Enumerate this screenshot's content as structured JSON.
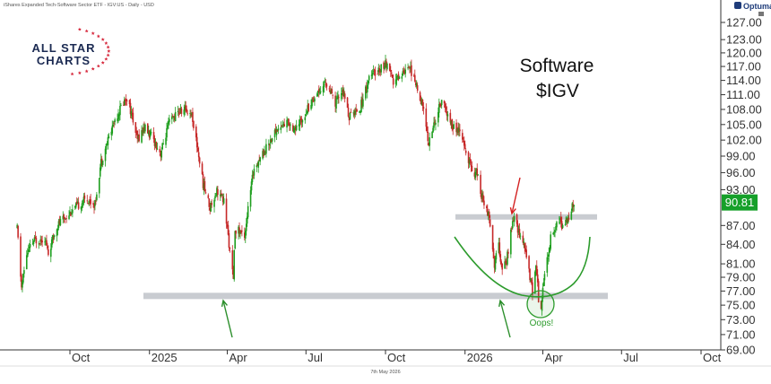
{
  "header": {
    "title": "iShares Expanded Tech-Software Sector ETF - IGV:US - Daily - USD"
  },
  "brand": {
    "line1": "ALL STAR",
    "line2": "CHARTS",
    "platform": "Optuma"
  },
  "chart_data": {
    "type": "candlestick",
    "title": "Software",
    "subtitle": "$IGV",
    "last_price": "90.81",
    "footer_date": "7th May 2026",
    "y_ticks": [
      "127.00",
      "123.00",
      "120.00",
      "117.00",
      "114.00",
      "111.00",
      "108.00",
      "105.00",
      "102.00",
      "99.00",
      "96.00",
      "93.00",
      "87.00",
      "84.00",
      "81.00",
      "79.00",
      "77.00",
      "75.00",
      "73.00",
      "71.00",
      "69.00"
    ],
    "x_ticks": [
      "Oct",
      "2025",
      "Apr",
      "Jul",
      "Oct",
      "2026",
      "Apr",
      "Jul",
      "Oct"
    ],
    "ylim": [
      68,
      129
    ],
    "price_path": [
      [
        "2024-08-01",
        86.5
      ],
      [
        "2024-08-06",
        77.5
      ],
      [
        "2024-08-12",
        82.5
      ],
      [
        "2024-08-20",
        84.5
      ],
      [
        "2024-09-02",
        85.0
      ],
      [
        "2024-09-06",
        82.5
      ],
      [
        "2024-09-16",
        87.0
      ],
      [
        "2024-09-30",
        89.0
      ],
      [
        "2024-10-08",
        90.0
      ],
      [
        "2024-10-20",
        91.5
      ],
      [
        "2024-10-30",
        90.5
      ],
      [
        "2024-11-06",
        98.0
      ],
      [
        "2024-11-14",
        102.0
      ],
      [
        "2024-11-22",
        106.0
      ],
      [
        "2024-12-02",
        109.5
      ],
      [
        "2024-12-06",
        110.5
      ],
      [
        "2024-12-12",
        106.5
      ],
      [
        "2024-12-18",
        102.0
      ],
      [
        "2024-12-26",
        104.5
      ],
      [
        "2025-01-06",
        102.0
      ],
      [
        "2025-01-14",
        99.5
      ],
      [
        "2025-01-24",
        105.5
      ],
      [
        "2025-02-04",
        107.5
      ],
      [
        "2025-02-12",
        108.0
      ],
      [
        "2025-02-19",
        107.0
      ],
      [
        "2025-02-26",
        100.0
      ],
      [
        "2025-03-04",
        94.0
      ],
      [
        "2025-03-12",
        90.0
      ],
      [
        "2025-03-20",
        93.0
      ],
      [
        "2025-03-28",
        91.0
      ],
      [
        "2025-04-04",
        83.0
      ],
      [
        "2025-04-08",
        78.5
      ],
      [
        "2025-04-10",
        86.5
      ],
      [
        "2025-04-21",
        85.5
      ],
      [
        "2025-05-02",
        97.0
      ],
      [
        "2025-05-14",
        100.0
      ],
      [
        "2025-05-28",
        104.0
      ],
      [
        "2025-06-10",
        105.5
      ],
      [
        "2025-06-20",
        104.0
      ],
      [
        "2025-07-02",
        108.0
      ],
      [
        "2025-07-14",
        111.5
      ],
      [
        "2025-07-24",
        113.5
      ],
      [
        "2025-08-04",
        109.0
      ],
      [
        "2025-08-12",
        112.0
      ],
      [
        "2025-08-20",
        106.5
      ],
      [
        "2025-09-02",
        108.5
      ],
      [
        "2025-09-12",
        114.5
      ],
      [
        "2025-09-24",
        116.5
      ],
      [
        "2025-10-02",
        117.5
      ],
      [
        "2025-10-10",
        113.5
      ],
      [
        "2025-10-20",
        115.5
      ],
      [
        "2025-10-28",
        117.5
      ],
      [
        "2025-11-05",
        113.0
      ],
      [
        "2025-11-12",
        109.5
      ],
      [
        "2025-11-20",
        101.5
      ],
      [
        "2025-11-28",
        106.0
      ],
      [
        "2025-12-05",
        110.0
      ],
      [
        "2025-12-12",
        106.5
      ],
      [
        "2025-12-18",
        104.5
      ],
      [
        "2025-12-26",
        103.5
      ],
      [
        "2026-01-05",
        98.0
      ],
      [
        "2026-01-12",
        96.0
      ],
      [
        "2026-01-16",
        95.5
      ],
      [
        "2026-01-20",
        92.0
      ],
      [
        "2026-01-26",
        90.0
      ],
      [
        "2026-01-30",
        87.5
      ],
      [
        "2026-02-04",
        81.0
      ],
      [
        "2026-02-09",
        84.0
      ],
      [
        "2026-02-13",
        79.5
      ],
      [
        "2026-02-18",
        81.5
      ],
      [
        "2026-02-24",
        86.5
      ],
      [
        "2026-02-27",
        88.5
      ],
      [
        "2026-03-04",
        86.0
      ],
      [
        "2026-03-10",
        84.0
      ],
      [
        "2026-03-16",
        80.0
      ],
      [
        "2026-03-20",
        77.0
      ],
      [
        "2026-03-24",
        81.0
      ],
      [
        "2026-03-27",
        76.0
      ],
      [
        "2026-03-30",
        75.0
      ],
      [
        "2026-04-02",
        78.5
      ],
      [
        "2026-04-07",
        82.5
      ],
      [
        "2026-04-11",
        86.0
      ],
      [
        "2026-04-15",
        86.5
      ],
      [
        "2026-04-20",
        88.0
      ],
      [
        "2026-04-24",
        86.5
      ],
      [
        "2026-04-29",
        88.0
      ],
      [
        "2026-05-04",
        89.5
      ],
      [
        "2026-05-07",
        90.81
      ]
    ],
    "support_level": 76.3,
    "resistance_level": 88.4,
    "annotations": {
      "oops": "Oops!"
    },
    "colors": {
      "up": "#1e9e1e",
      "down": "#c62828",
      "last_badge": "#16a02a",
      "arc": "#2c9b2c",
      "level_band": "#c9ccd1",
      "red_arrow": "#d32020",
      "green_arrow": "#2c8f2c"
    }
  }
}
